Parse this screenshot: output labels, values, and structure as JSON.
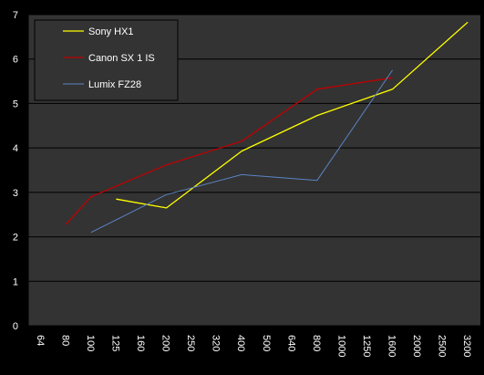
{
  "chart_data": {
    "type": "line",
    "title": "",
    "xlabel": "",
    "ylabel": "",
    "categories": [
      "64",
      "80",
      "100",
      "125",
      "160",
      "200",
      "250",
      "320",
      "400",
      "500",
      "640",
      "800",
      "1000",
      "1250",
      "1600",
      "2000",
      "2500",
      "3200"
    ],
    "ylim": [
      0,
      7
    ],
    "yticks": [
      "0",
      "1",
      "2",
      "3",
      "4",
      "5",
      "6",
      "7"
    ],
    "grid": "horizontal",
    "legend_position": "top-left",
    "series": [
      {
        "name": "Sony HX1",
        "color": "#ffff00",
        "x": [
          "125",
          "200",
          "400",
          "800",
          "1600",
          "3200"
        ],
        "values": [
          2.85,
          2.65,
          3.93,
          4.73,
          5.32,
          6.83
        ]
      },
      {
        "name": "Canon SX 1 IS",
        "color": "#c00000",
        "x": [
          "80",
          "100",
          "200",
          "400",
          "800",
          "1600"
        ],
        "values": [
          2.28,
          2.9,
          3.62,
          4.15,
          5.32,
          5.58
        ]
      },
      {
        "name": "Lumix FZ28",
        "color": "#5b84c4",
        "x": [
          "100",
          "200",
          "400",
          "800",
          "1600"
        ],
        "values": [
          2.1,
          2.95,
          3.4,
          3.27,
          5.75
        ]
      }
    ]
  }
}
